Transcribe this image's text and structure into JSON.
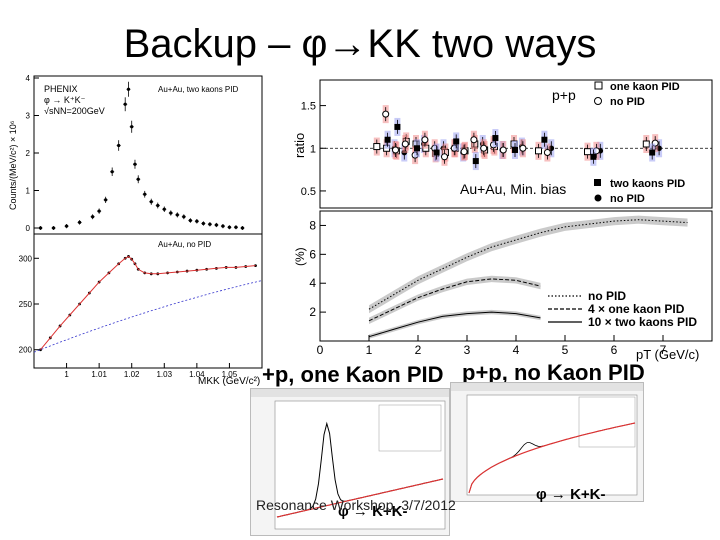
{
  "slide": {
    "title": "Backup – φ→KK two ways",
    "footer": "Resonance Workshop, 3/7/2012"
  },
  "left_plot": {
    "top_texts": [
      "PHENIX",
      "φ → K⁺K⁻",
      "√sNN=200GeV"
    ],
    "top_label": "Au+Au, two kaons PID",
    "bottom_label": "Au+Au, no PID",
    "ylabel": "Counts/(MeV/c²) × 10⁶",
    "xlabel": "MKK (GeV/c²)",
    "top_y_ticks": [
      "0",
      "1",
      "2",
      "3",
      "4"
    ],
    "bottom_y_ticks": [
      "200",
      "250",
      "300"
    ],
    "x_ticks": [
      "1",
      "1.01",
      "1.02",
      "1.03",
      "1.04",
      "1.05"
    ]
  },
  "right_plot": {
    "ratio_ylabel": "ratio",
    "ratio_label_system": "p+p",
    "legend_top": [
      "one kaon PID",
      "no PID"
    ],
    "minbias_label": "Au+Au, Min. bias",
    "legend_bottom": [
      "two kaons PID",
      "no PID"
    ],
    "ratio_y_ticks": [
      "0.5",
      "1",
      "1.5"
    ],
    "eff_ylabel": "(%)",
    "eff_y_ticks": [
      "2",
      "4",
      "6",
      "8"
    ],
    "x_ticks": [
      "0",
      "1",
      "2",
      "3",
      "4",
      "5",
      "6",
      "7"
    ],
    "xlabel": "pT (GeV/c)",
    "eff_legend": [
      "no PID",
      "4 × one kaon PID",
      "10 × two kaons PID"
    ]
  },
  "bottom_labels": {
    "left": "+p, one Kaon PID",
    "right": "p+p, no Kaon PID",
    "phi_left": "φ → K+K-",
    "phi_right": "φ → K+K-"
  },
  "chart_data": [
    {
      "type": "scatter",
      "title": "Au+Au, two kaons PID",
      "xlabel": "MKK (GeV/c²)",
      "ylabel": "Counts/(MeV/c²) × 10⁶",
      "xlim": [
        0.99,
        1.06
      ],
      "ylim": [
        0,
        4
      ],
      "x": [
        0.992,
        0.996,
        1.0,
        1.004,
        1.008,
        1.01,
        1.012,
        1.014,
        1.016,
        1.018,
        1.019,
        1.02,
        1.021,
        1.022,
        1.024,
        1.026,
        1.028,
        1.03,
        1.032,
        1.034,
        1.036,
        1.038,
        1.04,
        1.042,
        1.044,
        1.046,
        1.048,
        1.05,
        1.052,
        1.054
      ],
      "y": [
        0.0,
        0.0,
        0.05,
        0.15,
        0.3,
        0.45,
        0.75,
        1.5,
        2.2,
        3.3,
        3.7,
        2.7,
        1.7,
        1.3,
        0.9,
        0.7,
        0.6,
        0.5,
        0.4,
        0.35,
        0.3,
        0.2,
        0.18,
        0.12,
        0.1,
        0.08,
        0.05,
        0.02,
        0.02,
        0.0
      ]
    },
    {
      "type": "scatter",
      "title": "Au+Au, no PID",
      "xlabel": "MKK (GeV/c²)",
      "ylabel": "Counts/(MeV/c²) × 10⁶",
      "xlim": [
        0.99,
        1.06
      ],
      "ylim": [
        180,
        320
      ],
      "x": [
        0.992,
        0.995,
        0.998,
        1.001,
        1.004,
        1.007,
        1.01,
        1.013,
        1.016,
        1.018,
        1.019,
        1.02,
        1.021,
        1.022,
        1.024,
        1.026,
        1.028,
        1.031,
        1.034,
        1.037,
        1.04,
        1.043,
        1.046,
        1.049,
        1.052,
        1.055,
        1.058
      ],
      "y": [
        200,
        213,
        226,
        238,
        250,
        262,
        274,
        284,
        294,
        300,
        302,
        299,
        294,
        288,
        284,
        283,
        283,
        284,
        285,
        286,
        287,
        288,
        289,
        290,
        290,
        291,
        292
      ]
    },
    {
      "type": "scatter",
      "title": "p+p",
      "ylabel": "ratio",
      "xlim": [
        0,
        8
      ],
      "ylim": [
        0.3,
        1.8
      ],
      "series": [
        {
          "name": "one kaon PID",
          "x": [
            1.2,
            1.4,
            1.6,
            1.8,
            2.0,
            2.2,
            2.4,
            2.6,
            2.8,
            3.0,
            3.2,
            3.4,
            3.6,
            4.0,
            4.5,
            5.5,
            6.7
          ],
          "y": [
            1.02,
            1.0,
            0.97,
            1.08,
            1.05,
            1.0,
            0.94,
            0.95,
            1.0,
            0.97,
            1.05,
            0.98,
            1.02,
            1.05,
            0.97,
            0.96,
            1.05
          ]
        },
        {
          "name": "no PID",
          "x": [
            1.3,
            1.5,
            1.7,
            1.9,
            2.1,
            2.3,
            2.5,
            2.7,
            2.9,
            3.1,
            3.3,
            3.5,
            3.7,
            4.1,
            4.6,
            5.6,
            6.8
          ],
          "y": [
            1.4,
            0.98,
            1.05,
            0.92,
            1.1,
            1.0,
            0.9,
            1.0,
            0.96,
            1.1,
            1.0,
            1.04,
            0.98,
            1.0,
            0.95,
            0.97,
            1.06
          ]
        }
      ]
    },
    {
      "type": "scatter",
      "title": "Au+Au, Min. bias",
      "ylabel": "ratio",
      "xlim": [
        0,
        8
      ],
      "ylim": [
        0.3,
        1.8
      ],
      "series": [
        {
          "name": "two kaons PID",
          "x": [
            1.4,
            1.6,
            2.0,
            2.4,
            2.8,
            3.2,
            3.6,
            4.0,
            4.6,
            5.6,
            6.8
          ],
          "y": [
            1.1,
            1.25,
            1.0,
            0.95,
            1.08,
            0.85,
            1.12,
            0.98,
            1.1,
            0.9,
            0.95
          ]
        },
        {
          "name": "no PID",
          "x": [
            1.5,
            1.7,
            2.1,
            2.5,
            2.9,
            3.3,
            3.7,
            4.1,
            4.7,
            5.7,
            6.9
          ],
          "y": [
            1.0,
            0.95,
            1.05,
            1.0,
            0.95,
            1.05,
            0.98,
            1.02,
            1.0,
            0.97,
            1.0
          ]
        }
      ]
    },
    {
      "type": "line",
      "ylabel": "(%)",
      "xlabel": "pT (GeV/c)",
      "xlim": [
        0,
        8
      ],
      "ylim": [
        0,
        9
      ],
      "series": [
        {
          "name": "no PID",
          "x": [
            1.0,
            1.5,
            2.0,
            2.5,
            3.0,
            3.5,
            4.0,
            4.5,
            5.0,
            5.5,
            6.0,
            6.5,
            7.0,
            7.5
          ],
          "y": [
            2.2,
            3.2,
            4.2,
            5.0,
            5.8,
            6.5,
            7.0,
            7.5,
            7.9,
            8.1,
            8.3,
            8.4,
            8.3,
            8.2
          ]
        },
        {
          "name": "4 × one kaon PID",
          "x": [
            1.0,
            1.5,
            2.0,
            2.5,
            3.0,
            3.5,
            4.0,
            4.5
          ],
          "y": [
            1.4,
            2.2,
            3.0,
            3.6,
            4.1,
            4.3,
            4.2,
            3.8
          ]
        },
        {
          "name": "10 × two kaons PID",
          "x": [
            1.0,
            1.5,
            2.0,
            2.5,
            3.0,
            3.5,
            4.0,
            4.5
          ],
          "y": [
            0.3,
            0.8,
            1.3,
            1.7,
            1.9,
            2.0,
            1.9,
            1.6
          ]
        }
      ]
    }
  ]
}
